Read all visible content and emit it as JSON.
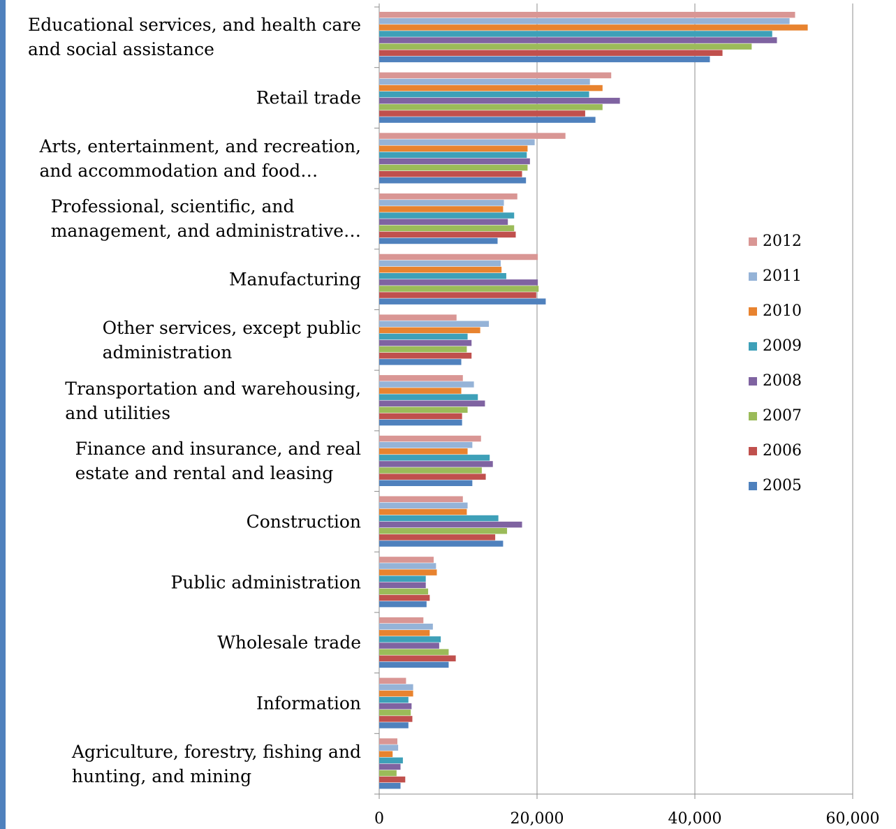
{
  "chart_data": {
    "type": "hbar",
    "categories": [
      "Educational services, and health care\nand social assistance",
      "Retail trade",
      "Arts, entertainment, and recreation,\nand accommodation and food…",
      "Professional, scientific, and\nmanagement, and administrative…",
      "Manufacturing",
      "Other services, except public\nadministration",
      "Transportation and warehousing,\nand utilities",
      "Finance and insurance, and real\nestate and rental and leasing",
      "Construction",
      "Public administration",
      "Wholesale trade",
      "Information",
      "Agriculture, forestry, fishing and\nhunting, and mining"
    ],
    "series": [
      {
        "name": "2012",
        "color": "#d99694",
        "values": [
          52700,
          29400,
          23600,
          17500,
          20100,
          9800,
          10600,
          12900,
          10600,
          6900,
          5600,
          3400,
          2300
        ]
      },
      {
        "name": "2011",
        "color": "#95b3d7",
        "values": [
          52000,
          26700,
          19700,
          15800,
          15400,
          13900,
          12000,
          11800,
          11200,
          7200,
          6800,
          4300,
          2400
        ]
      },
      {
        "name": "2010",
        "color": "#e8832f",
        "values": [
          54300,
          28300,
          18800,
          15700,
          15500,
          12800,
          10400,
          11200,
          11100,
          7300,
          6400,
          4300,
          1700
        ]
      },
      {
        "name": "2009",
        "color": "#3ea0b8",
        "values": [
          49800,
          26600,
          18700,
          17100,
          16100,
          11200,
          12500,
          14000,
          15100,
          5900,
          7800,
          3700,
          3000
        ]
      },
      {
        "name": "2008",
        "color": "#7f63a1",
        "values": [
          50400,
          30500,
          19100,
          16300,
          20100,
          11700,
          13400,
          14400,
          18100,
          5900,
          7600,
          4100,
          2700
        ]
      },
      {
        "name": "2007",
        "color": "#9bbb59",
        "values": [
          47200,
          28300,
          18800,
          17100,
          20200,
          11100,
          11200,
          13000,
          16200,
          6200,
          8800,
          4000,
          2200
        ]
      },
      {
        "name": "2006",
        "color": "#c0504d",
        "values": [
          43500,
          26100,
          18100,
          17300,
          19900,
          11700,
          10500,
          13500,
          14700,
          6400,
          9700,
          4200,
          3300
        ]
      },
      {
        "name": "2005",
        "color": "#4f81bd",
        "values": [
          41900,
          27400,
          18600,
          15000,
          21100,
          10400,
          10500,
          11800,
          15700,
          6000,
          8800,
          3700,
          2700
        ]
      }
    ],
    "xlim": [
      0,
      60000
    ],
    "xticks": [
      0,
      {
        "value": 20000,
        "label": "20,000"
      },
      {
        "value": 40000,
        "label": "40,000"
      },
      {
        "value": 60000,
        "label": "60,000"
      }
    ],
    "grid": true,
    "legend": "right"
  }
}
